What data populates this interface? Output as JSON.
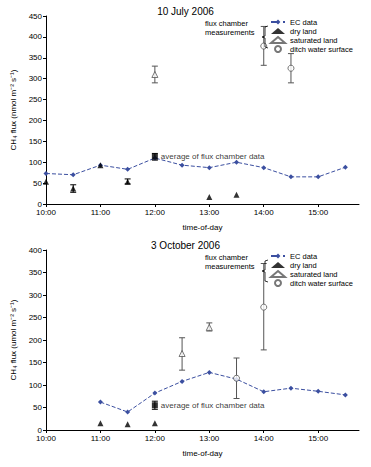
{
  "chart_data": [
    {
      "type": "line",
      "title": "10 July 2006",
      "x_label": "time-of-day",
      "y_label": "CH₄ flux (nmol m⁻² s⁻¹)",
      "xlim": [
        10,
        15.75
      ],
      "xticks": [
        {
          "value": 10,
          "label": "10:00"
        },
        {
          "value": 11,
          "label": "11:00"
        },
        {
          "value": 12,
          "label": "12:00"
        },
        {
          "value": 13,
          "label": "13:00"
        },
        {
          "value": 14,
          "label": "14:00"
        },
        {
          "value": 15,
          "label": "15:00"
        }
      ],
      "ylim": [
        0,
        450
      ],
      "yticks": [
        0,
        50,
        100,
        150,
        200,
        250,
        300,
        350,
        400,
        450
      ],
      "grid": false,
      "legend": "upper right",
      "annotations": [
        "flux chamber measurements"
      ],
      "series": [
        {
          "name": "EC data",
          "type": "line",
          "color": "#3b4fa0",
          "marker": "diamond",
          "line_style": "dashed",
          "x": [
            10,
            10.5,
            11,
            11.5,
            12,
            12.5,
            13,
            13.5,
            14,
            14.5,
            15,
            15.5
          ],
          "values": [
            73,
            70,
            93,
            83,
            110,
            93,
            87,
            100,
            87,
            65,
            65,
            88
          ]
        },
        {
          "name": "dry land",
          "type": "scatter",
          "color": "#000000",
          "marker": "triangle",
          "x": [
            10,
            10.5,
            11,
            11.5,
            13,
            13.5
          ],
          "values": [
            53,
            37,
            93,
            53,
            17,
            22
          ],
          "errors": [
            null,
            [
              28,
              46
            ],
            null,
            [
              48,
              60
            ],
            null,
            null
          ]
        },
        {
          "name": "saturated land",
          "type": "scatter",
          "color": "#555555",
          "marker": "open triangle",
          "x": [
            12
          ],
          "values": [
            310
          ],
          "errors": [
            [
              290,
              330
            ]
          ]
        },
        {
          "name": "ditch water surface",
          "type": "scatter",
          "color": "#555555",
          "marker": "open circle",
          "x": [
            14,
            14.5
          ],
          "values": [
            378,
            325
          ],
          "errors": [
            [
              332,
              425
            ],
            [
              290,
              360
            ]
          ]
        }
      ],
      "average": {
        "label": "average of flux chamber data",
        "color": "#000000",
        "marker": "square",
        "x": [
          12
        ],
        "values": [
          113
        ],
        "errors": [
          [
            105,
            121
          ]
        ]
      }
    },
    {
      "type": "line",
      "title": "3 October 2006",
      "x_label": "time-of-day",
      "y_label": "CH₄ flux (umol m⁻² s⁻¹)",
      "xlim": [
        10,
        15.75
      ],
      "xticks": [
        {
          "value": 10,
          "label": "10:00"
        },
        {
          "value": 11,
          "label": "11:00"
        },
        {
          "value": 12,
          "label": "12:00"
        },
        {
          "value": 13,
          "label": "13:00"
        },
        {
          "value": 14,
          "label": "14:00"
        },
        {
          "value": 15,
          "label": "15:00"
        }
      ],
      "ylim": [
        0,
        400
      ],
      "yticks": [
        0,
        50,
        100,
        150,
        200,
        250,
        300,
        350,
        400
      ],
      "grid": false,
      "legend": "upper right",
      "annotations": [
        "flux chamber measurements"
      ],
      "series": [
        {
          "name": "EC data",
          "type": "line",
          "color": "#3b4fa0",
          "marker": "diamond",
          "line_style": "dashed",
          "x": [
            11,
            11.5,
            12,
            12.5,
            13,
            13.5,
            14,
            14.5,
            15,
            15.5
          ],
          "values": [
            62,
            40,
            82,
            108,
            128,
            113,
            85,
            93,
            86,
            78
          ]
        },
        {
          "name": "dry land",
          "type": "scatter",
          "color": "#000000",
          "marker": "triangle",
          "x": [
            11,
            11.5,
            12
          ],
          "values": [
            15,
            13,
            15
          ]
        },
        {
          "name": "saturated land",
          "type": "scatter",
          "color": "#555555",
          "marker": "open triangle",
          "x": [
            12.5,
            13
          ],
          "values": [
            170,
            228
          ],
          "errors": [
            [
              133,
              205
            ],
            [
              220,
              238
            ]
          ]
        },
        {
          "name": "ditch water surface",
          "type": "scatter",
          "color": "#555555",
          "marker": "open circle",
          "x": [
            13.5,
            14
          ],
          "values": [
            115,
            273
          ],
          "errors": [
            [
              70,
              160
            ],
            [
              178,
              370
            ]
          ]
        }
      ],
      "average": {
        "label": "average of flux chamber data",
        "color": "#000000",
        "marker": "square",
        "x": [
          12
        ],
        "values": [
          55
        ],
        "errors": [
          [
            46,
            64
          ]
        ]
      }
    }
  ]
}
